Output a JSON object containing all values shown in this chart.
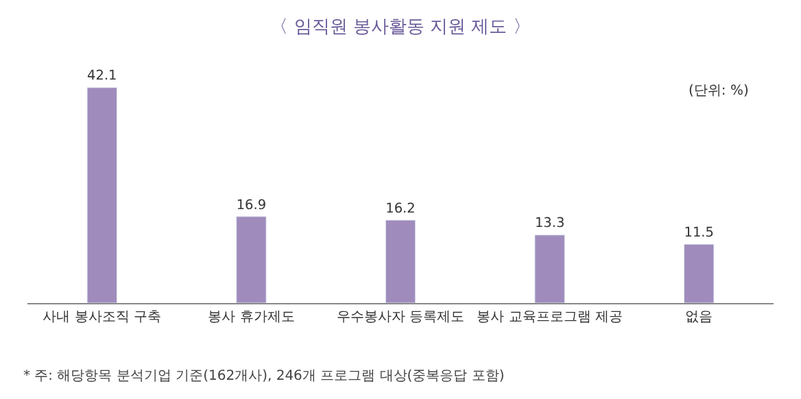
{
  "chart_data": {
    "type": "bar",
    "title": "〈 임직원 봉사활동 지원 제도 〉",
    "categories": [
      "사내 봉사조직 구축",
      "봉사 휴가제도",
      "우수봉사자 등록제도",
      "봉사 교육프로그램 제공",
      "없음"
    ],
    "values": [
      42.1,
      16.9,
      16.2,
      13.3,
      11.5
    ],
    "color": "#a08cbc",
    "data_labels": true,
    "legend": false,
    "tick_labels": "x",
    "annotations": [
      "(단위: %)",
      "* 주: 해당항목 분석기업 기준(162개사), 246개 프로그램 대상(중복응답 포함)"
    ]
  }
}
